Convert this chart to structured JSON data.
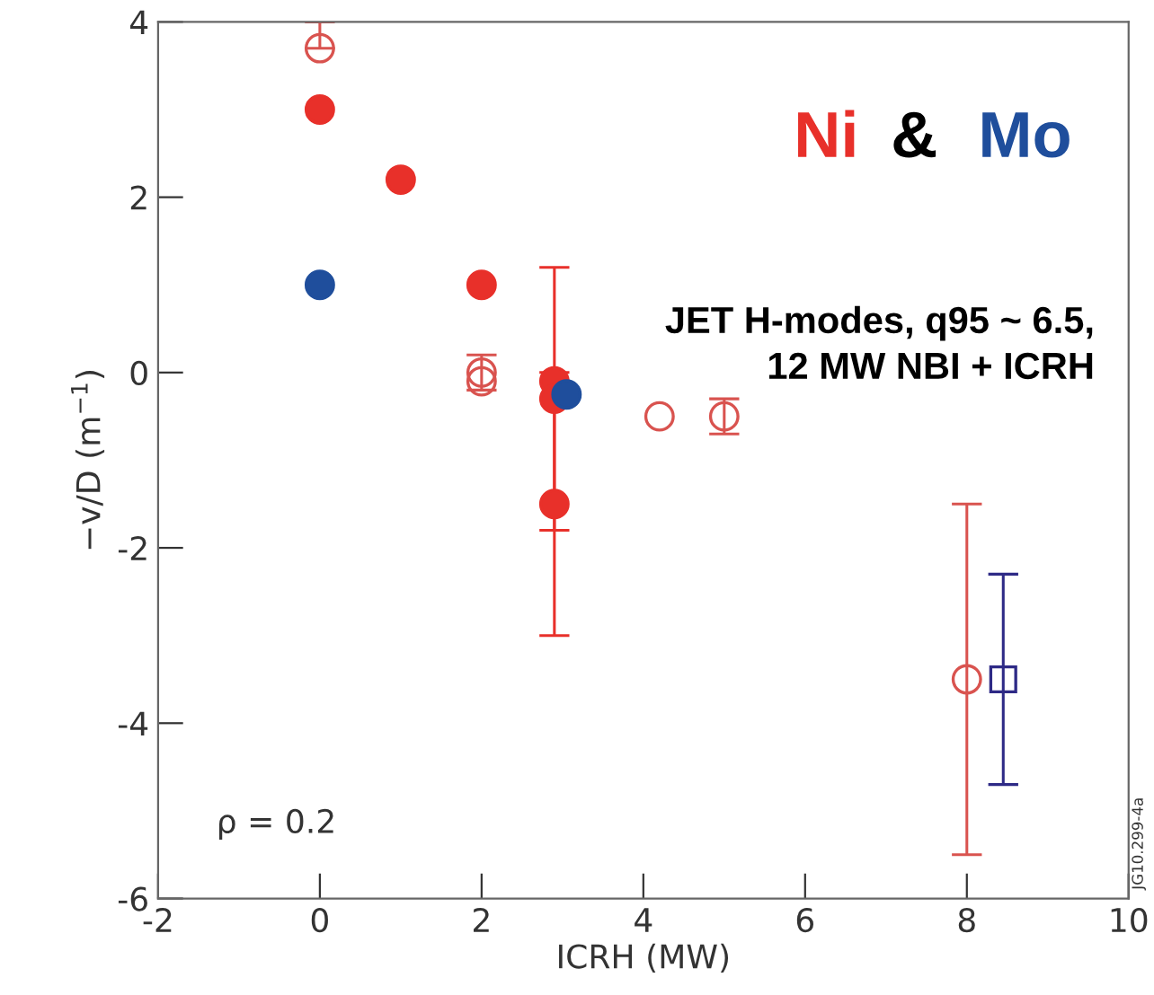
{
  "chart_data": {
    "type": "scatter",
    "xlabel": "ICRH (MW)",
    "ylabel": "−v/D (m$^{−1}$)",
    "xlim": [
      -2,
      10
    ],
    "ylim": [
      -6,
      4
    ],
    "xticks": [
      -2,
      0,
      2,
      4,
      6,
      8,
      10
    ],
    "yticks": [
      -6,
      -4,
      -2,
      0,
      2,
      4
    ],
    "grid": false,
    "annotations": [
      "&",
      "JET H-modes, q95 ~ 6.5,\n12 MW NBI + ICRH",
      "ρ = 0.2",
      "JG10.299-4a"
    ],
    "series": [
      {
        "name": "Ni",
        "color": "#e8302a",
        "marker": "circle",
        "x": [
          0,
          1,
          2,
          2.9,
          2.9,
          2.9
        ],
        "values": [
          3.0,
          2.2,
          1.0,
          -0.1,
          -0.3,
          -1.5
        ],
        "errors": [
          null,
          null,
          null,
          null,
          1.5,
          1.5
        ]
      },
      {
        "name": "Mo",
        "color": "#1f4e9c",
        "marker": "circle",
        "x": [
          0,
          3.05
        ],
        "values": [
          1.0,
          -0.25
        ]
      },
      {
        "color": "#d9534f",
        "marker": "circle",
        "x": [
          0,
          2,
          2,
          4.2,
          5,
          8
        ],
        "values": [
          3.7,
          0.0,
          -0.1,
          -0.5,
          -0.5,
          -3.5
        ],
        "errors": [
          [
            3.7,
            4.0
          ],
          0.2,
          null,
          null,
          0.2,
          2.0
        ]
      },
      {
        "color": "#2e2a86",
        "marker": "square",
        "x": [
          8.45
        ],
        "values": [
          -3.5
        ],
        "errors": [
          1.2
        ]
      }
    ]
  }
}
